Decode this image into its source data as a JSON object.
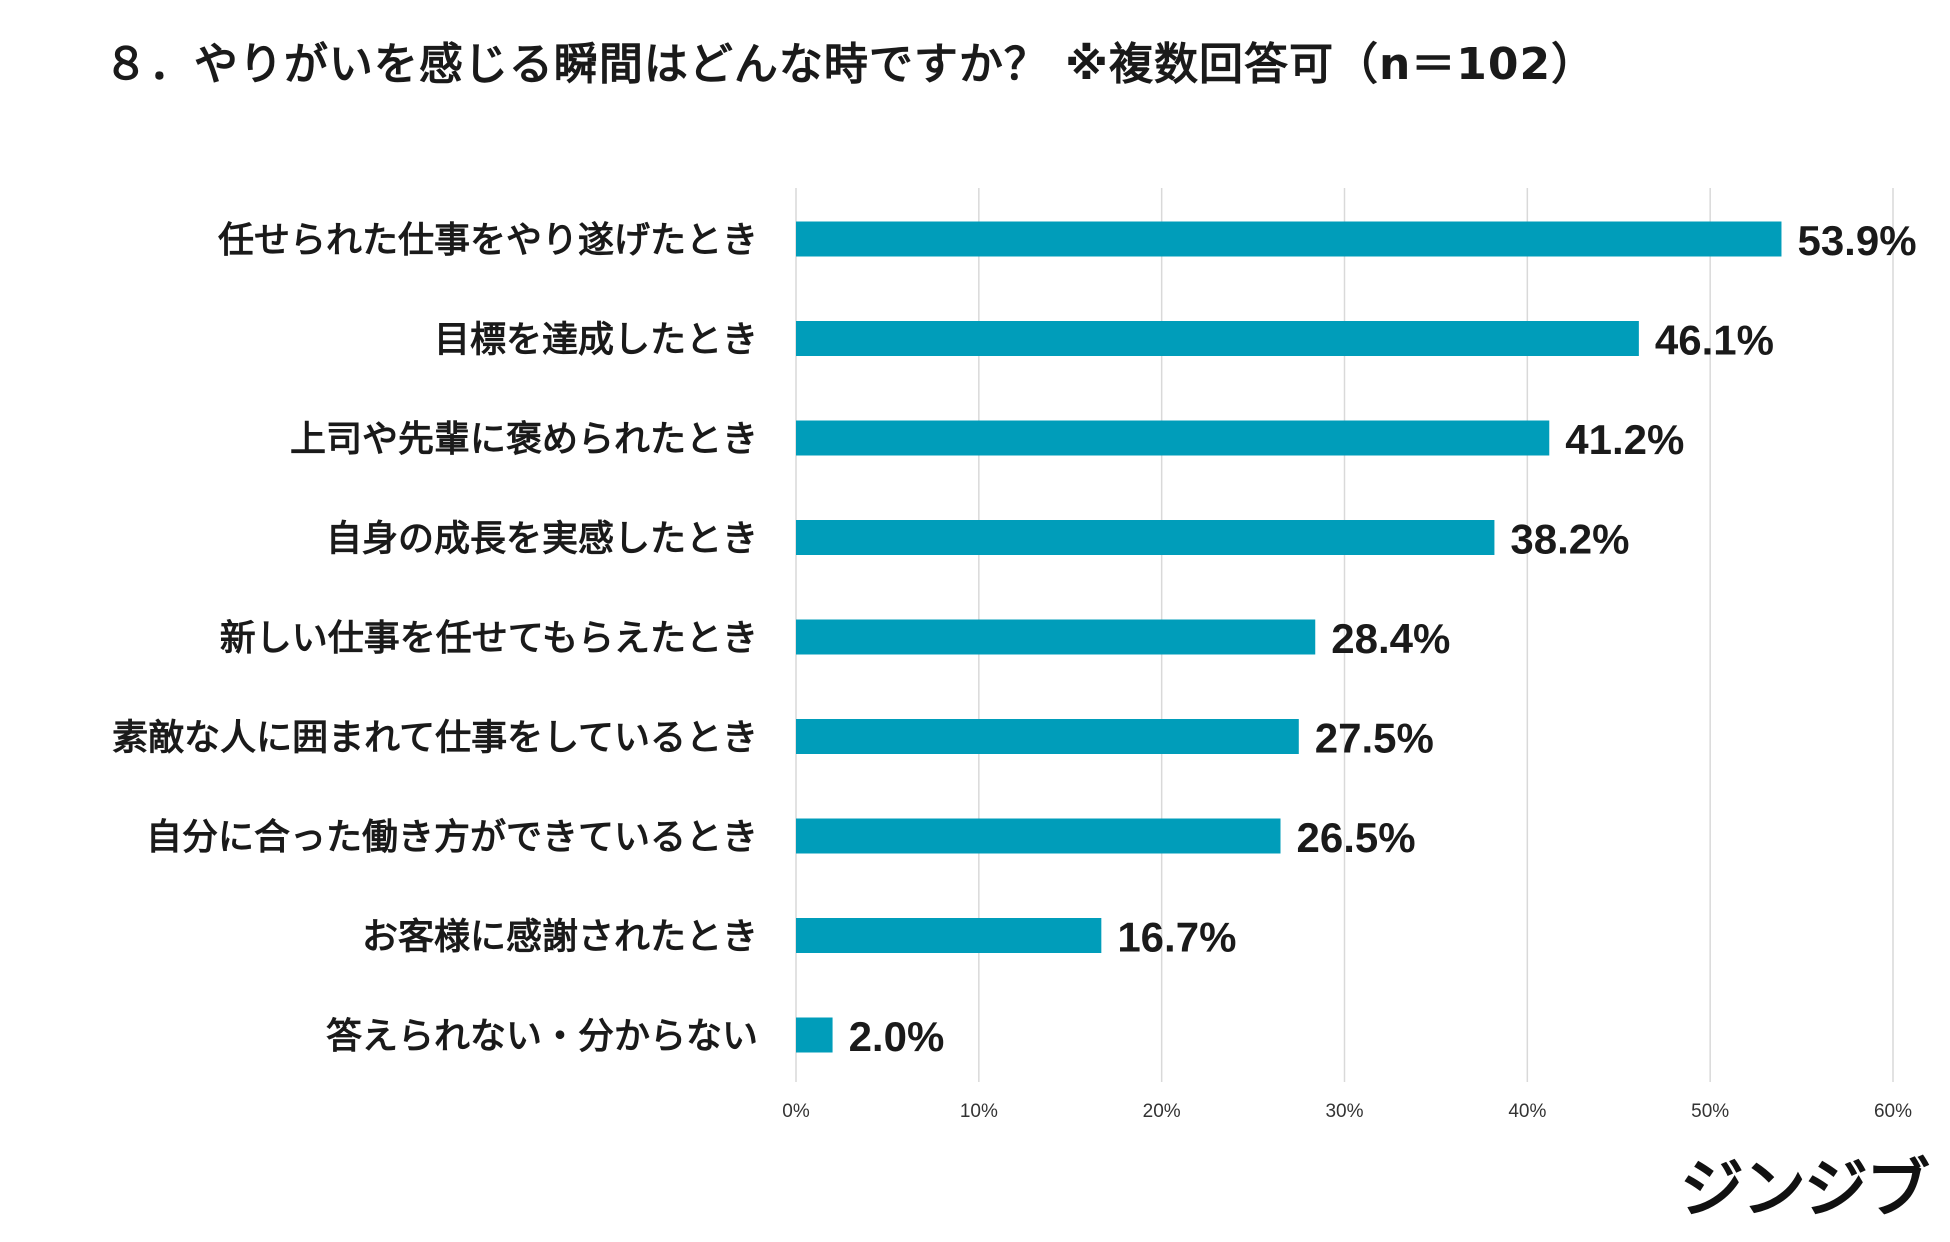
{
  "chart_data": {
    "type": "bar",
    "orientation": "horizontal",
    "title": "８．やりがいを感じる瞬間はどんな時ですか？ ※複数回答可（n＝102）",
    "categories": [
      "任せられた仕事をやり遂げたとき",
      "目標を達成したとき",
      "上司や先輩に褒められたとき",
      "自身の成長を実感したとき",
      "新しい仕事を任せてもらえたとき",
      "素敵な人に囲まれて仕事をしているとき",
      "自分に合った働き方ができているとき",
      "お客様に感謝されたとき",
      "答えられない・分からない"
    ],
    "values": [
      53.9,
      46.1,
      41.2,
      38.2,
      28.4,
      27.5,
      26.5,
      16.7,
      2.0
    ],
    "value_labels": [
      "53.9%",
      "46.1%",
      "41.2%",
      "38.2%",
      "28.4%",
      "27.5%",
      "26.5%",
      "16.7%",
      "2.0%"
    ],
    "xlim": [
      0,
      60
    ],
    "ticks": [
      0,
      10,
      20,
      30,
      40,
      50,
      60
    ],
    "tick_labels": [
      "0%",
      "10%",
      "20%",
      "30%",
      "40%",
      "50%",
      "60%"
    ],
    "xlabel": "",
    "ylabel": "",
    "grid": true,
    "bar_color": "#009dba",
    "grid_color": "#d9d9d9"
  },
  "logo_text": "ジンジブ"
}
